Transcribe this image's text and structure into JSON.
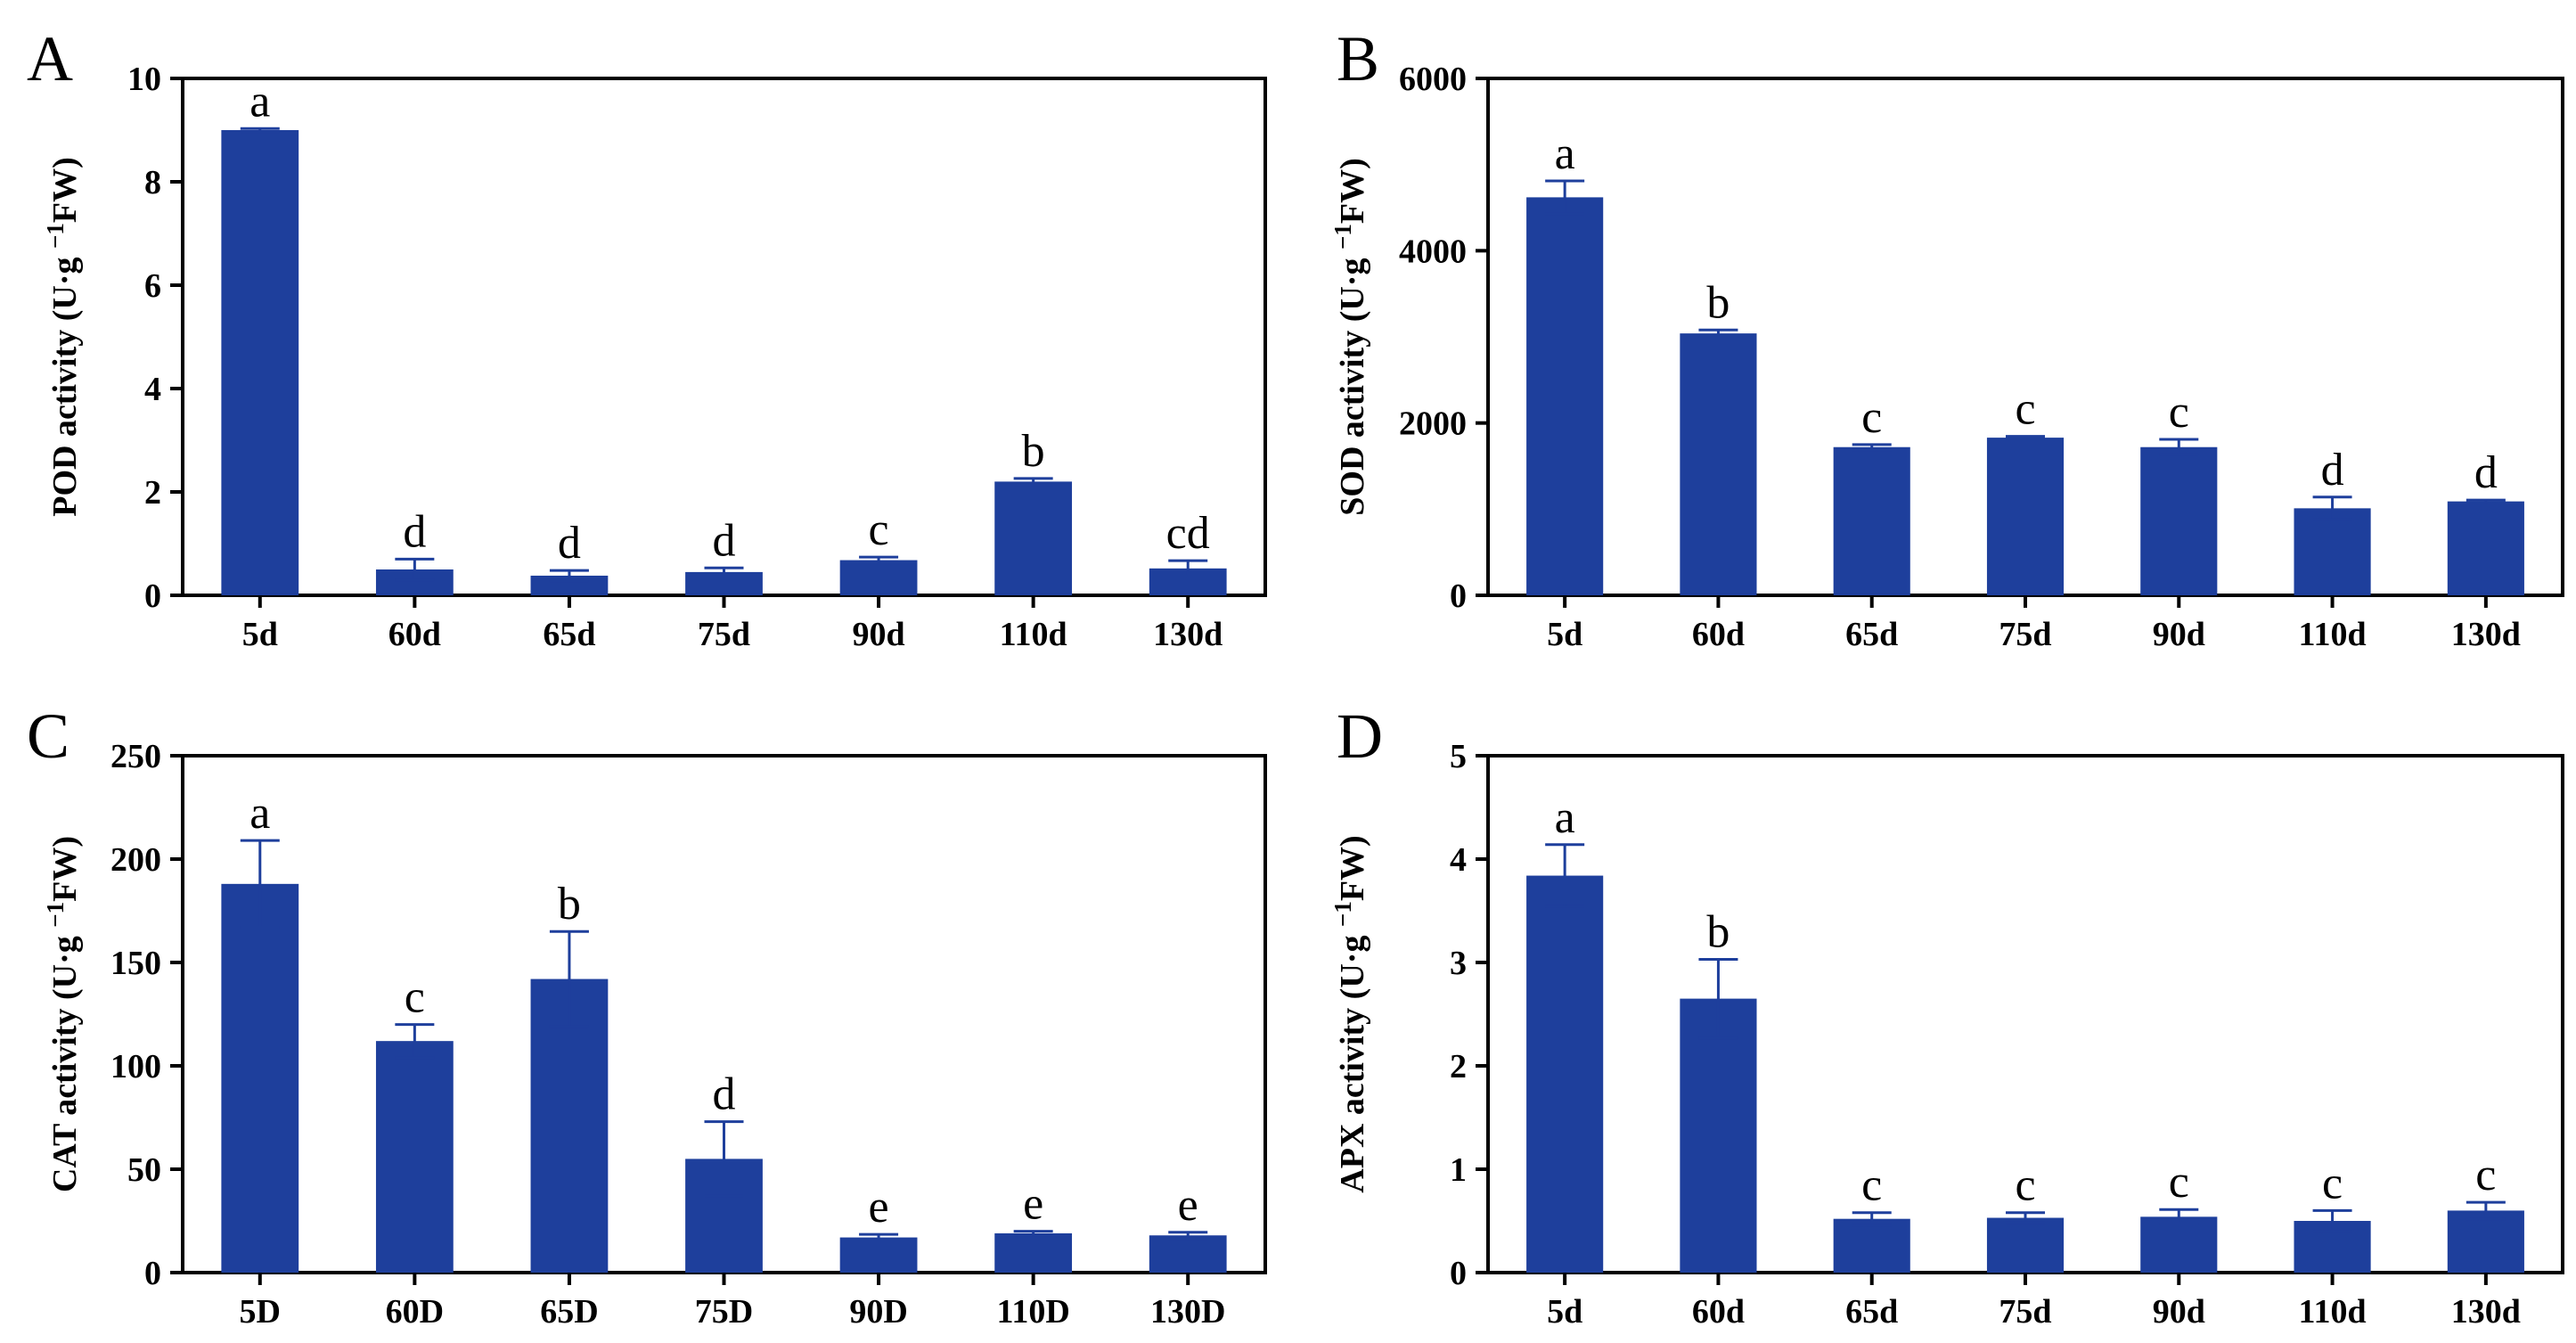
{
  "colors": {
    "bar": "#1e3f9c",
    "axis": "#000000"
  },
  "chart_data": [
    {
      "type": "bar",
      "panel": "A",
      "ylabel_parts": [
        "POD activity (U·g ",
        "−1",
        "FW)"
      ],
      "categories": [
        "5d",
        "60d",
        "65d",
        "75d",
        "90d",
        "110d",
        "130d"
      ],
      "values": [
        9.0,
        0.5,
        0.38,
        0.45,
        0.68,
        2.2,
        0.52
      ],
      "errors": [
        0.03,
        0.2,
        0.1,
        0.08,
        0.06,
        0.06,
        0.15
      ],
      "letters": [
        "a",
        "d",
        "d",
        "d",
        "c",
        "b",
        "cd"
      ],
      "ylim": [
        0,
        10
      ],
      "yticks": [
        "0",
        "2",
        "4",
        "6",
        "8",
        "10"
      ]
    },
    {
      "type": "bar",
      "panel": "B",
      "ylabel_parts": [
        "SOD activity (U·g ",
        "−1",
        "FW)"
      ],
      "categories": [
        "5d",
        "60d",
        "65d",
        "75d",
        "90d",
        "110d",
        "130d"
      ],
      "values": [
        4620,
        3040,
        1720,
        1830,
        1720,
        1010,
        1090
      ],
      "errors": [
        190,
        40,
        30,
        15,
        90,
        130,
        15
      ],
      "letters": [
        "a",
        "b",
        "c",
        "c",
        "c",
        "d",
        "d"
      ],
      "ylim": [
        0,
        6000
      ],
      "yticks": [
        "0",
        "2000",
        "4000",
        "6000"
      ]
    },
    {
      "type": "bar",
      "panel": "C",
      "ylabel_parts": [
        "CAT activity (U·g ",
        "−1",
        "FW)"
      ],
      "categories": [
        "5D",
        "60D",
        "65D",
        "75D",
        "90D",
        "110D",
        "130D"
      ],
      "values": [
        188,
        112,
        142,
        55,
        17,
        19,
        18
      ],
      "errors": [
        21,
        8,
        23,
        18,
        1.5,
        1.0,
        1.5
      ],
      "letters": [
        "a",
        "c",
        "b",
        "d",
        "e",
        "e",
        "e"
      ],
      "ylim": [
        0,
        250
      ],
      "yticks": [
        "0",
        "50",
        "100",
        "150",
        "200",
        "250"
      ]
    },
    {
      "type": "bar",
      "panel": "D",
      "ylabel_parts": [
        "APX activity (U·g ",
        "−1",
        "FW)"
      ],
      "categories": [
        "5d",
        "60d",
        "65d",
        "75d",
        "90d",
        "110d",
        "130d"
      ],
      "values": [
        3.84,
        2.65,
        0.52,
        0.53,
        0.54,
        0.5,
        0.6
      ],
      "errors": [
        0.3,
        0.38,
        0.06,
        0.05,
        0.07,
        0.1,
        0.08
      ],
      "letters": [
        "a",
        "b",
        "c",
        "c",
        "c",
        "c",
        "c"
      ],
      "ylim": [
        0,
        5
      ],
      "yticks": [
        "0",
        "1",
        "2",
        "3",
        "4",
        "5"
      ]
    }
  ]
}
